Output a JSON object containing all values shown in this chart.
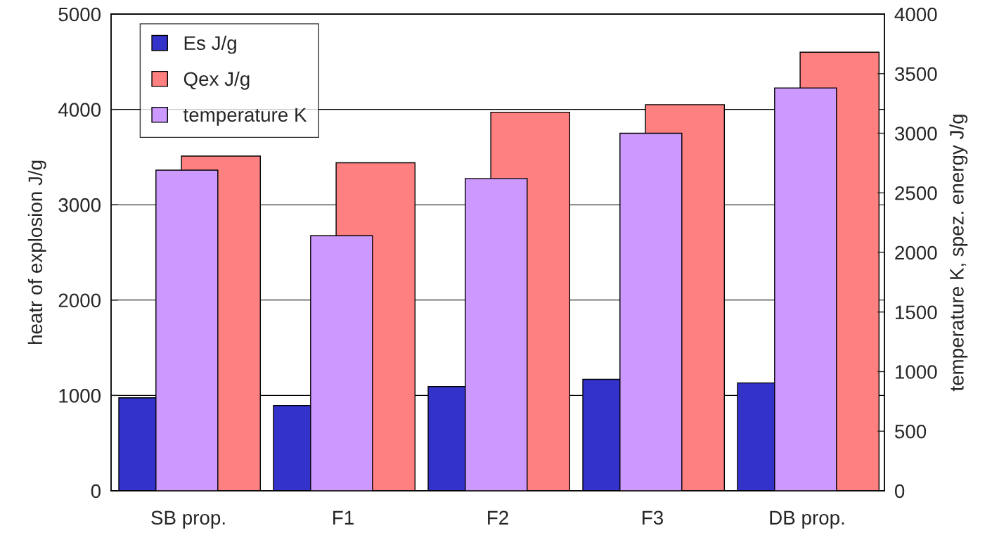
{
  "chart_data": {
    "type": "bar",
    "categories": [
      "SB prop.",
      "F1",
      "F2",
      "F3",
      "DB prop."
    ],
    "series": [
      {
        "name": "Es J/g",
        "color": "#3333cc",
        "axis": "y2",
        "values": [
          780,
          715,
          875,
          935,
          905
        ]
      },
      {
        "name": "Qex J/g",
        "color": "#ff8080",
        "values": [
          3510,
          3440,
          3970,
          4050,
          4600
        ]
      },
      {
        "name": "temperature K",
        "color": "#cc99ff",
        "axis": "y2",
        "values": [
          2690,
          2140,
          2620,
          3000,
          3380
        ]
      }
    ],
    "ylabel": "heatr of explosion J/g",
    "y2label": "temperature K, spez. energy J/g",
    "ylim": [
      0,
      5000
    ],
    "yticks": [
      0,
      1000,
      2000,
      3000,
      4000,
      5000
    ],
    "y2lim": [
      0,
      4000
    ],
    "y2ticks": [
      0,
      500,
      1000,
      1500,
      2000,
      2500,
      3000,
      3500,
      4000
    ],
    "grid": "y",
    "legend": "top left"
  }
}
